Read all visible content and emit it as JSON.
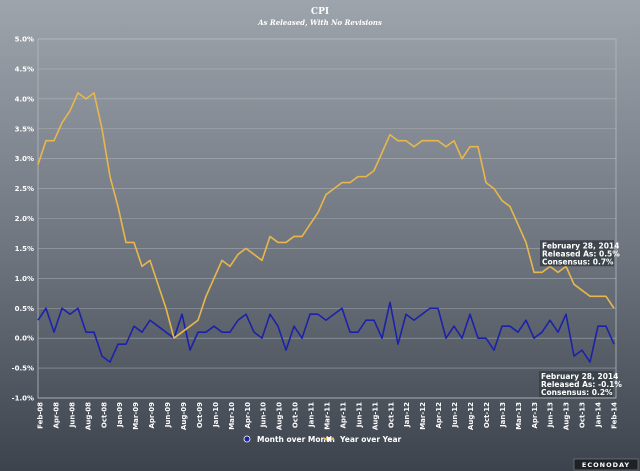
{
  "chart_data": {
    "type": "line",
    "title": "CPI",
    "subtitle": "As Released, With No Revisions",
    "xlabel": "",
    "ylabel": "",
    "ylim": [
      -1.0,
      5.0
    ],
    "y_ticks": [
      "5.0%",
      "4.5%",
      "4.0%",
      "3.5%",
      "3.0%",
      "2.5%",
      "2.0%",
      "1.5%",
      "1.0%",
      "0.5%",
      "0.0%",
      "-0.5%",
      "-1.0%"
    ],
    "x_tick_labels": [
      "Feb-08",
      "Apr-08",
      "Jun-08",
      "Aug-08",
      "Oct-08",
      "Jan-09",
      "Mar-09",
      "Apr-09",
      "Jun-09",
      "Aug-09",
      "Oct-09",
      "Jan-10",
      "Mar-10",
      "Apr-10",
      "Jun-10",
      "Aug-10",
      "Oct-10",
      "Jan-11",
      "Mar-11",
      "Apr-11",
      "Jun-11",
      "Aug-11",
      "Oct-11",
      "Jan-12",
      "Mar-12",
      "Apr-12",
      "Jun-12",
      "Aug-12",
      "Oct-12",
      "Jan-13",
      "Mar-13",
      "Apr-13",
      "Jun-13",
      "Aug-13",
      "Oct-13",
      "Jan-14",
      "Feb-14"
    ],
    "x_range": [
      "Feb 2008",
      "Feb 2014"
    ],
    "grid": true,
    "legend_placement": "bottom-center",
    "series": [
      {
        "name": "Month over Month",
        "color": "#1c22a8",
        "values": [
          0.3,
          0.5,
          0.1,
          0.5,
          0.4,
          0.5,
          0.1,
          0.1,
          -0.3,
          -0.4,
          -0.1,
          -0.1,
          0.2,
          0.1,
          0.3,
          0.2,
          0.1,
          0.0,
          0.4,
          -0.2,
          0.1,
          0.1,
          0.2,
          0.1,
          0.1,
          0.3,
          0.4,
          0.1,
          0.0,
          0.4,
          0.2,
          -0.2,
          0.2,
          0.0,
          0.4,
          0.4,
          0.3,
          0.4,
          0.5,
          0.1,
          0.1,
          0.3,
          0.3,
          0.0,
          0.6,
          -0.1,
          0.4,
          0.3,
          0.4,
          0.5,
          0.5,
          0.0,
          0.2,
          0.0,
          0.4,
          0.0,
          0.0,
          -0.2,
          0.2,
          0.2,
          0.1,
          0.3,
          0.0,
          0.1,
          0.3,
          0.1,
          0.4,
          -0.3,
          -0.2,
          -0.4,
          0.2,
          0.2,
          -0.1
        ]
      },
      {
        "name": "Year over Year",
        "color": "#e8b74c",
        "values": [
          2.9,
          3.3,
          3.3,
          3.6,
          3.8,
          4.1,
          4.0,
          4.1,
          3.5,
          2.7,
          2.2,
          1.6,
          1.6,
          1.2,
          1.3,
          0.9,
          0.5,
          0.0,
          0.1,
          0.2,
          0.3,
          0.7,
          1.0,
          1.3,
          1.2,
          1.4,
          1.5,
          1.4,
          1.3,
          1.7,
          1.6,
          1.6,
          1.7,
          1.7,
          1.9,
          2.1,
          2.4,
          2.5,
          2.6,
          2.6,
          2.7,
          2.7,
          2.8,
          3.1,
          3.4,
          3.3,
          3.3,
          3.2,
          3.3,
          3.3,
          3.3,
          3.2,
          3.3,
          3.0,
          3.2,
          3.2,
          2.6,
          2.5,
          2.3,
          2.2,
          1.9,
          1.6,
          1.1,
          1.1,
          1.2,
          1.1,
          1.2,
          0.9,
          0.8,
          0.7,
          0.7,
          0.7,
          0.5
        ]
      }
    ],
    "annotations": [
      {
        "series": "Year over Year",
        "lines": [
          "February 28, 2014",
          "Released As: 0.5%",
          "Consensus: 0.7%"
        ]
      },
      {
        "series": "Month over Month",
        "lines": [
          "February 28, 2014",
          "Released As: -0.1%",
          "Consensus: 0.2%"
        ]
      }
    ]
  },
  "logo": "ECONODAY"
}
